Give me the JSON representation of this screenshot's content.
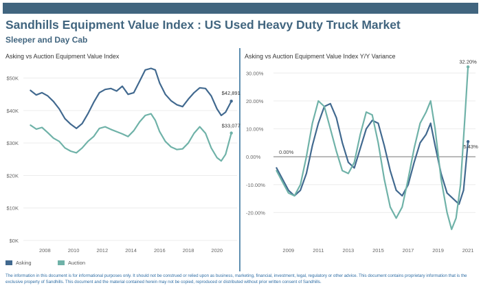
{
  "header": {
    "title": "Sandhills Equipment Value Index : US Used Heavy Duty Truck Market",
    "subtitle": "Sleeper and Day Cab"
  },
  "legend": [
    {
      "label": "Asking",
      "color": "#41698f"
    },
    {
      "label": "Auction",
      "color": "#6fb2a8"
    }
  ],
  "footer": "The information in this document is for informational purposes only.  It should not be construed or relied upon as business, marketing, financial, investment, legal, regulatory or other advice. This document contains proprietary information that is the exclusive property of Sandhills. This document and the material contained herein may not be copied, reproduced or distributed without prior written consent of Sandhills.",
  "chart_data": [
    {
      "type": "line",
      "title": "Asking vs Auction Equipment Value Index",
      "xlim": [
        2006.5,
        2021.4
      ],
      "ylim": [
        0,
        55000
      ],
      "x_ticks": [
        2008,
        2010,
        2012,
        2014,
        2016,
        2018,
        2020
      ],
      "x_tick_labels": [
        "2008",
        "2010",
        "2012",
        "2014",
        "2016",
        "2018",
        "2020"
      ],
      "y_ticks": [
        0,
        10000,
        20000,
        30000,
        40000,
        50000
      ],
      "y_tick_labels": [
        "$0K",
        "$10K",
        "$20K",
        "$30K",
        "$40K",
        "$50K"
      ],
      "grid": "horizontal",
      "legend_position": "bottom-left",
      "end_labels": [
        "$42,891",
        "$33,077"
      ],
      "series": [
        {
          "name": "Asking",
          "color": "#41698f",
          "points": [
            [
              2007.0,
              46200
            ],
            [
              2007.4,
              44800
            ],
            [
              2007.8,
              45500
            ],
            [
              2008.2,
              44500
            ],
            [
              2008.6,
              42800
            ],
            [
              2009.0,
              40500
            ],
            [
              2009.4,
              37500
            ],
            [
              2009.8,
              35800
            ],
            [
              2010.2,
              34500
            ],
            [
              2010.6,
              36000
            ],
            [
              2011.0,
              39000
            ],
            [
              2011.4,
              42500
            ],
            [
              2011.8,
              45500
            ],
            [
              2012.2,
              46500
            ],
            [
              2012.6,
              46800
            ],
            [
              2013.0,
              46000
            ],
            [
              2013.4,
              47500
            ],
            [
              2013.8,
              45000
            ],
            [
              2014.2,
              45500
            ],
            [
              2014.6,
              49000
            ],
            [
              2015.0,
              52500
            ],
            [
              2015.4,
              53000
            ],
            [
              2015.7,
              52500
            ],
            [
              2016.0,
              48500
            ],
            [
              2016.4,
              45000
            ],
            [
              2016.8,
              43000
            ],
            [
              2017.2,
              41800
            ],
            [
              2017.6,
              41200
            ],
            [
              2018.0,
              43500
            ],
            [
              2018.4,
              45500
            ],
            [
              2018.8,
              47000
            ],
            [
              2019.2,
              46800
            ],
            [
              2019.6,
              44500
            ],
            [
              2020.0,
              40500
            ],
            [
              2020.3,
              38500
            ],
            [
              2020.6,
              39500
            ],
            [
              2021.0,
              42891
            ]
          ]
        },
        {
          "name": "Auction",
          "color": "#6fb2a8",
          "points": [
            [
              2007.0,
              35500
            ],
            [
              2007.4,
              34300
            ],
            [
              2007.8,
              34800
            ],
            [
              2008.2,
              33200
            ],
            [
              2008.6,
              31500
            ],
            [
              2009.0,
              30500
            ],
            [
              2009.4,
              28500
            ],
            [
              2009.8,
              27500
            ],
            [
              2010.2,
              27000
            ],
            [
              2010.6,
              28500
            ],
            [
              2011.0,
              30500
            ],
            [
              2011.4,
              32000
            ],
            [
              2011.8,
              34500
            ],
            [
              2012.2,
              35000
            ],
            [
              2012.6,
              34200
            ],
            [
              2013.0,
              33500
            ],
            [
              2013.4,
              32800
            ],
            [
              2013.8,
              32000
            ],
            [
              2014.2,
              33800
            ],
            [
              2014.6,
              36500
            ],
            [
              2015.0,
              38500
            ],
            [
              2015.4,
              39000
            ],
            [
              2015.7,
              37000
            ],
            [
              2016.0,
              33500
            ],
            [
              2016.4,
              30500
            ],
            [
              2016.8,
              28800
            ],
            [
              2017.2,
              28000
            ],
            [
              2017.6,
              28200
            ],
            [
              2018.0,
              30000
            ],
            [
              2018.4,
              33000
            ],
            [
              2018.8,
              35000
            ],
            [
              2019.2,
              33000
            ],
            [
              2019.6,
              28500
            ],
            [
              2020.0,
              25500
            ],
            [
              2020.3,
              24500
            ],
            [
              2020.6,
              26500
            ],
            [
              2021.0,
              33077
            ]
          ]
        }
      ]
    },
    {
      "type": "line",
      "title": "Asking vs Auction Equipment Value Index Y/Y Variance",
      "xlim": [
        2008.0,
        2021.5
      ],
      "ylim": [
        -30,
        34
      ],
      "x_ticks": [
        2009,
        2011,
        2013,
        2015,
        2017,
        2019,
        2021
      ],
      "x_tick_labels": [
        "2009",
        "2011",
        "2013",
        "2015",
        "2017",
        "2019",
        "2021"
      ],
      "y_ticks": [
        -20,
        -10,
        0,
        10,
        20,
        30
      ],
      "y_tick_labels": [
        "-20.00%",
        "-10.00%",
        "0.00%",
        "10.00%",
        "20.00%",
        "30.00%"
      ],
      "grid": "horizontal",
      "reference_line_label": "0.00%",
      "end_labels": [
        "32.20%",
        "5.43%"
      ],
      "series": [
        {
          "name": "Asking",
          "color": "#41698f",
          "points": [
            [
              2008.2,
              -4
            ],
            [
              2008.6,
              -8
            ],
            [
              2009.0,
              -12
            ],
            [
              2009.4,
              -14
            ],
            [
              2009.8,
              -12
            ],
            [
              2010.2,
              -6
            ],
            [
              2010.6,
              4
            ],
            [
              2011.0,
              12
            ],
            [
              2011.4,
              18
            ],
            [
              2011.8,
              19
            ],
            [
              2012.2,
              14
            ],
            [
              2012.6,
              5
            ],
            [
              2013.0,
              -2
            ],
            [
              2013.4,
              -4
            ],
            [
              2013.8,
              3
            ],
            [
              2014.2,
              10
            ],
            [
              2014.6,
              13
            ],
            [
              2015.0,
              12
            ],
            [
              2015.4,
              4
            ],
            [
              2015.8,
              -5
            ],
            [
              2016.2,
              -12
            ],
            [
              2016.6,
              -14
            ],
            [
              2017.0,
              -10
            ],
            [
              2017.4,
              -2
            ],
            [
              2017.8,
              5
            ],
            [
              2018.2,
              8
            ],
            [
              2018.5,
              12
            ],
            [
              2018.8,
              4
            ],
            [
              2019.2,
              -6
            ],
            [
              2019.6,
              -13
            ],
            [
              2020.0,
              -15
            ],
            [
              2020.4,
              -17
            ],
            [
              2020.7,
              -12
            ],
            [
              2021.0,
              5.43
            ]
          ]
        },
        {
          "name": "Auction",
          "color": "#6fb2a8",
          "points": [
            [
              2008.2,
              -5
            ],
            [
              2008.6,
              -9
            ],
            [
              2009.0,
              -13
            ],
            [
              2009.4,
              -14
            ],
            [
              2009.8,
              -10
            ],
            [
              2010.2,
              0
            ],
            [
              2010.6,
              12
            ],
            [
              2011.0,
              20
            ],
            [
              2011.4,
              18
            ],
            [
              2011.8,
              10
            ],
            [
              2012.2,
              2
            ],
            [
              2012.6,
              -5
            ],
            [
              2013.0,
              -6
            ],
            [
              2013.4,
              -2
            ],
            [
              2013.8,
              8
            ],
            [
              2014.2,
              16
            ],
            [
              2014.6,
              15
            ],
            [
              2015.0,
              5
            ],
            [
              2015.4,
              -8
            ],
            [
              2015.8,
              -18
            ],
            [
              2016.2,
              -22
            ],
            [
              2016.6,
              -18
            ],
            [
              2017.0,
              -8
            ],
            [
              2017.4,
              3
            ],
            [
              2017.8,
              12
            ],
            [
              2018.2,
              16
            ],
            [
              2018.5,
              20
            ],
            [
              2018.8,
              10
            ],
            [
              2019.2,
              -8
            ],
            [
              2019.6,
              -20
            ],
            [
              2019.9,
              -26
            ],
            [
              2020.2,
              -22
            ],
            [
              2020.5,
              -10
            ],
            [
              2020.8,
              15
            ],
            [
              2021.0,
              32.2
            ]
          ]
        }
      ]
    }
  ]
}
